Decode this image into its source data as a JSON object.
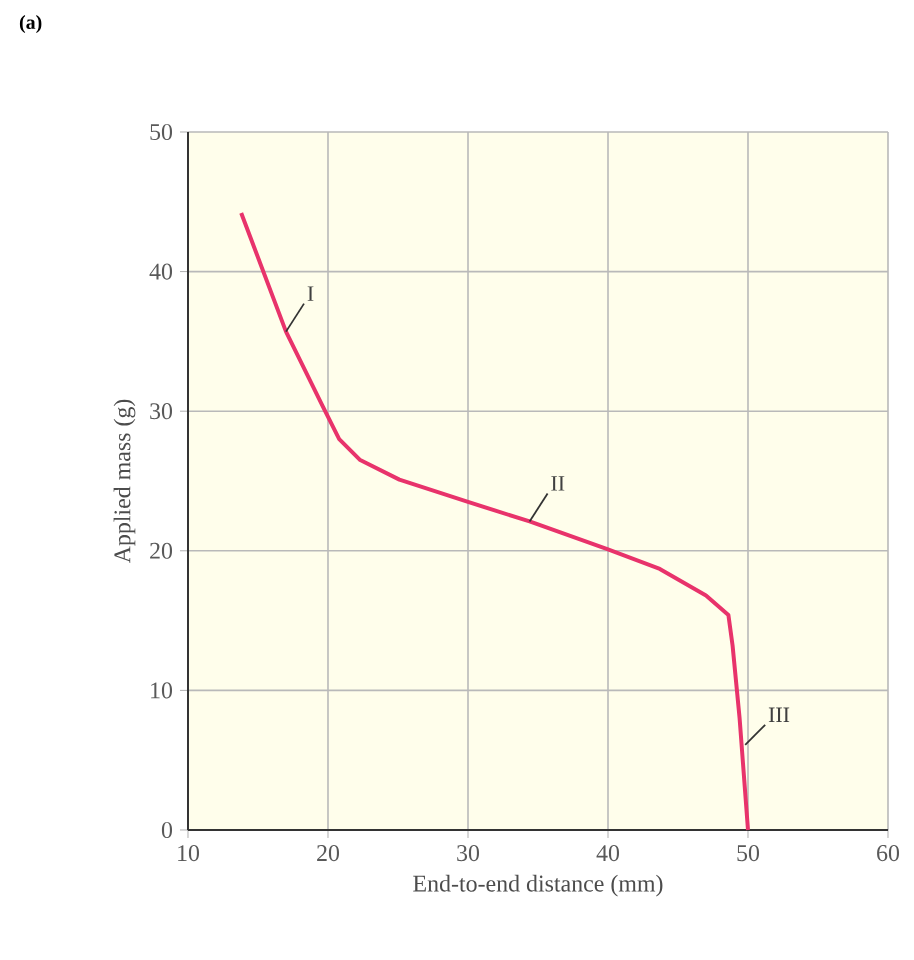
{
  "chart_data": {
    "type": "line",
    "title": "(a)",
    "xlabel": "End-to-end distance (mm)",
    "ylabel": "Applied mass (g)",
    "x": [
      13.8,
      17.0,
      19.6,
      20.8,
      22.3,
      25.1,
      30.0,
      34.4,
      40.0,
      43.7,
      47.0,
      48.6,
      48.9,
      49.4,
      50.0
    ],
    "values": [
      44.2,
      35.7,
      30.4,
      28.0,
      26.5,
      25.1,
      23.5,
      22.1,
      20.1,
      18.7,
      16.8,
      15.4,
      13.2,
      8.0,
      0
    ],
    "color": "#e8336b",
    "xlim": [
      10,
      60
    ],
    "ylim": [
      0,
      50
    ],
    "xticks": [
      10,
      20,
      30,
      40,
      50,
      60
    ],
    "yticks": [
      0,
      10,
      20,
      30,
      40,
      50
    ],
    "grid": true,
    "annotations": [
      {
        "text": "I",
        "x": 17.0,
        "y": 35.7
      },
      {
        "text": "II",
        "x": 34.4,
        "y": 22.1
      },
      {
        "text": "III",
        "x": 49.8,
        "y": 6.1
      }
    ]
  }
}
